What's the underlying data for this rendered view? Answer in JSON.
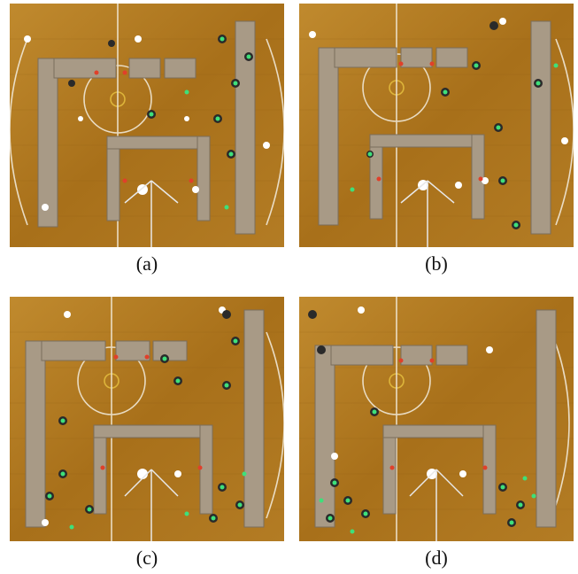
{
  "figure": {
    "panels": [
      {
        "id": "a",
        "caption": "(a)"
      },
      {
        "id": "b",
        "caption": "(b)"
      },
      {
        "id": "c",
        "caption": "(c)"
      },
      {
        "id": "d",
        "caption": "(d)"
      }
    ],
    "colors": {
      "floor": "#b07a1e",
      "floor_light": "#c99438",
      "court_line": "#f4efe2",
      "partition": "#a89a86",
      "marker_green": "#3ee07a",
      "marker_red": "#e0402a"
    }
  }
}
